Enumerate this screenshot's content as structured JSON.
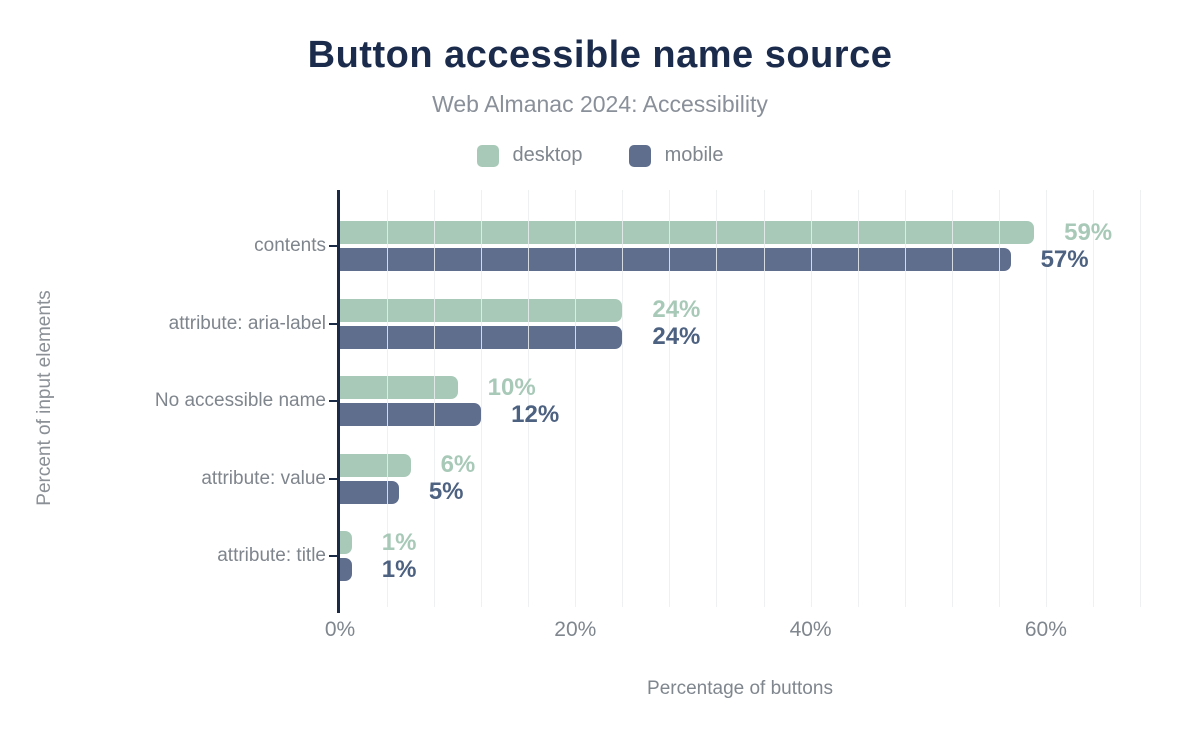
{
  "header": {
    "title": "Button accessible name source",
    "subtitle": "Web Almanac 2024: Accessibility"
  },
  "legend": [
    {
      "label": "desktop",
      "color": "#a8c9b8"
    },
    {
      "label": "mobile",
      "color": "#5f6e8d"
    }
  ],
  "axes": {
    "x_title": "Percentage of buttons",
    "y_title": "Percent of input elements"
  },
  "colors": {
    "title_text": "#1b2b4b",
    "subtitle_text": "#8a9099",
    "axis_line": "#1c2b45",
    "gray_text": "#7f868e",
    "desktop_bar": "#a8c9b8",
    "mobile_bar": "#5f6e8d",
    "desktop_value_text": "#a8c9b8",
    "mobile_value_text": "#4d6180",
    "gridline": "rgba(234,239,240,0.85)"
  },
  "chart_data": {
    "type": "bar",
    "orientation": "horizontal",
    "title": "Button accessible name source",
    "subtitle": "Web Almanac 2024: Accessibility",
    "xlabel": "Percentage of buttons",
    "ylabel": "Percent of input elements",
    "categories": [
      "contents",
      "attribute: aria-label",
      "No accessible name",
      "attribute: value",
      "attribute: title"
    ],
    "series": [
      {
        "name": "desktop",
        "color": "#a8c9b8",
        "label_color": "#a8c9b8",
        "values": [
          59,
          24,
          10,
          6,
          1
        ]
      },
      {
        "name": "mobile",
        "color": "#5f6e8d",
        "label_color": "#4d6180",
        "values": [
          57,
          24,
          12,
          5,
          1
        ]
      }
    ],
    "value_suffix": "%",
    "x_ticks": [
      {
        "value": 0,
        "label": "0%"
      },
      {
        "value": 20,
        "label": "20%"
      },
      {
        "value": 40,
        "label": "40%"
      },
      {
        "value": 60,
        "label": "60%"
      }
    ],
    "xlim": [
      0,
      68
    ],
    "minor_grid_step": 4,
    "grid": true,
    "legend_position": "top"
  }
}
